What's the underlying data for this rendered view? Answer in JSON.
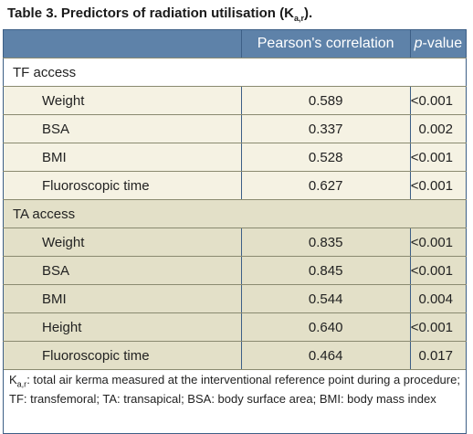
{
  "title": {
    "text": "Table 3. Predictors of radiation utilisation (K",
    "subscript": "a,r",
    "suffix": ")."
  },
  "table": {
    "header": [
      "",
      "Pearson's correlation",
      {
        "italic": "p",
        "text": "-value"
      }
    ],
    "sections": [
      {
        "label": "TF access",
        "rows": [
          [
            "Weight",
            "0.589",
            "<0.001"
          ],
          [
            "BSA",
            "0.337",
            "0.002"
          ],
          [
            "BMI",
            "0.528",
            "<0.001"
          ],
          [
            "Fluoroscopic time",
            "0.627",
            "<0.001"
          ]
        ]
      },
      {
        "label": "TA access",
        "rows": [
          [
            "Weight",
            "0.835",
            "<0.001"
          ],
          [
            "BSA",
            "0.845",
            "<0.001"
          ],
          [
            "BMI",
            "0.544",
            "0.004"
          ],
          [
            "Height",
            "0.640",
            "<0.001"
          ],
          [
            "Fluoroscopic time",
            "0.464",
            "0.017"
          ]
        ]
      }
    ]
  },
  "footnote": {
    "symbol": "K",
    "subscript": "a,r",
    "text": ": total air kerma measured at the interventional reference point during a procedure; TF: transfemoral; TA: transapical; BSA: body surface area; BMI: body mass index"
  }
}
